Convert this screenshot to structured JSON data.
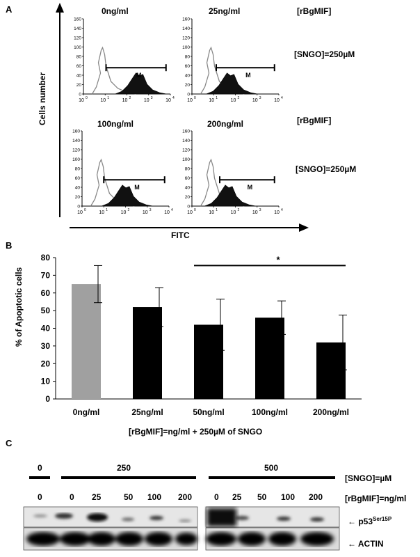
{
  "panel_a": {
    "letter": "A",
    "y_axis_label": "Cells  number",
    "x_axis_label": "FITC",
    "histograms": [
      {
        "title": "0ng/ml",
        "marker": "M",
        "y_ticks": [
          "0",
          "20",
          "40",
          "60",
          "80",
          "100",
          "120",
          "140",
          "160"
        ],
        "x_ticks": [
          "10",
          "10",
          "10",
          "10",
          "10"
        ],
        "x_exp": [
          "0",
          "1",
          "2",
          "3",
          "4"
        ]
      },
      {
        "title": "25ng/ml",
        "marker": "M",
        "y_ticks": [
          "0",
          "20",
          "40",
          "60",
          "80",
          "100",
          "120",
          "140",
          "160"
        ],
        "x_ticks": [
          "10",
          "10",
          "10",
          "10",
          "10"
        ],
        "x_exp": [
          "0",
          "1",
          "2",
          "3",
          "4"
        ]
      },
      {
        "title": "100ng/ml",
        "marker": "M",
        "y_ticks": [
          "0",
          "20",
          "40",
          "60",
          "80",
          "100",
          "120",
          "140",
          "160"
        ],
        "x_ticks": [
          "10",
          "10",
          "10",
          "10",
          "10"
        ],
        "x_exp": [
          "0",
          "1",
          "2",
          "3",
          "4"
        ]
      },
      {
        "title": "200ng/ml",
        "marker": "M",
        "y_ticks": [
          "0",
          "20",
          "40",
          "60",
          "80",
          "100",
          "120",
          "140",
          "160"
        ],
        "x_ticks": [
          "10",
          "10",
          "10",
          "10",
          "10"
        ],
        "x_exp": [
          "0",
          "1",
          "2",
          "3",
          "4"
        ]
      }
    ],
    "row_labels": [
      {
        "rbgmif": "[rBgMIF]",
        "sngo": "[SNGO]=250µM"
      },
      {
        "rbgmif": "[rBgMIF]",
        "sngo": "[SNGO]=250µM"
      }
    ]
  },
  "panel_b": {
    "letter": "B",
    "significance": "*"
  },
  "chart_data": {
    "type": "bar",
    "title": "",
    "ylabel": "% of Apoptotic cells",
    "xlabel": "[rBgMIF]=ng/ml + 250µM of SNGO",
    "categories": [
      "0ng/ml",
      "25ng/ml",
      "50ng/ml",
      "100ng/ml",
      "200ng/ml"
    ],
    "values": [
      65,
      52,
      42,
      46,
      32
    ],
    "errors": [
      10.5,
      11,
      14.5,
      9.5,
      15.5
    ],
    "colors": [
      "#a0a0a0",
      "#000000",
      "#000000",
      "#000000",
      "#000000"
    ],
    "ylim": [
      0,
      80
    ],
    "yticks": [
      "0",
      "10",
      "20",
      "30",
      "40",
      "50",
      "60",
      "70",
      "80"
    ],
    "grid": false
  },
  "panel_c": {
    "letter": "C",
    "sngo_groups": [
      "0",
      "250",
      "500"
    ],
    "sngo_label": "[SNGO]=µM",
    "rbgmif_label": "[rBgMIF]=ng/ml",
    "lanes_left": [
      "0",
      "0",
      "25",
      "50",
      "100",
      "200"
    ],
    "lanes_right": [
      "0",
      "25",
      "50",
      "100",
      "200"
    ],
    "p53_label": "p53",
    "p53_superscript": "Ser15P",
    "actin_label": "ACTIN",
    "arrow": "←"
  }
}
